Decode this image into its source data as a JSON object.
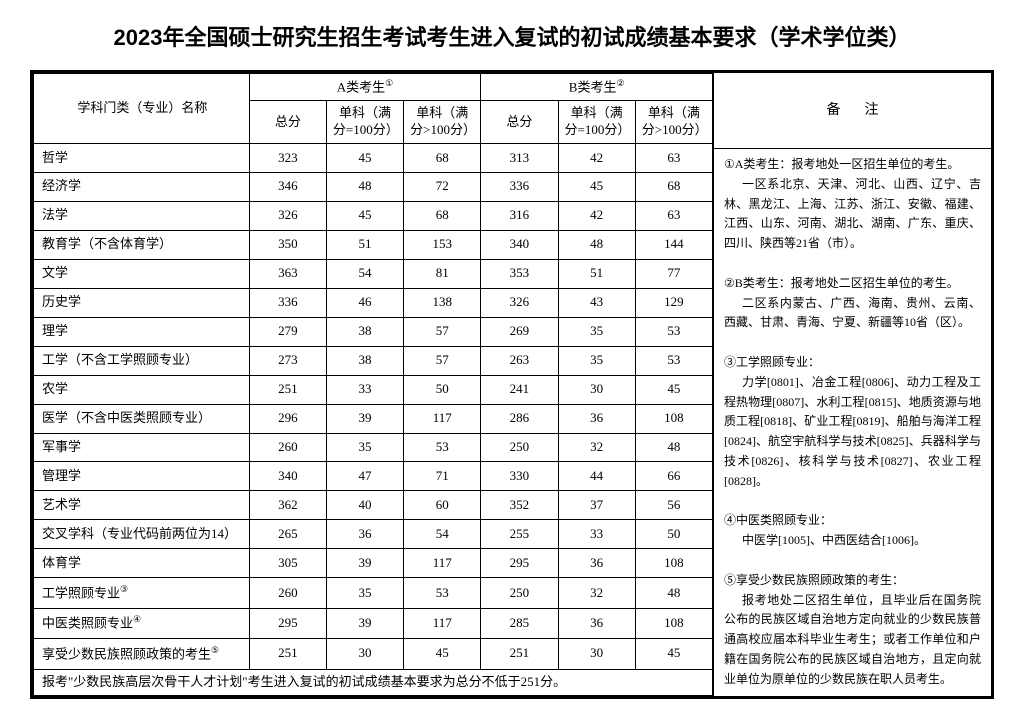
{
  "title": "2023年全国硕士研究生招生考试考生进入复试的初试成绩基本要求（学术学位类）",
  "headers": {
    "subject": "学科门类（专业）名称",
    "groupA": "A类考生",
    "groupB": "B类考生",
    "supA": "①",
    "supB": "②",
    "total": "总分",
    "single100": "单科（满分=100分）",
    "singleOver100": "单科（满分>100分）",
    "notes": "备注"
  },
  "rows": [
    {
      "name": "哲学",
      "a": [
        323,
        45,
        68
      ],
      "b": [
        313,
        42,
        63
      ]
    },
    {
      "name": "经济学",
      "a": [
        346,
        48,
        72
      ],
      "b": [
        336,
        45,
        68
      ]
    },
    {
      "name": "法学",
      "a": [
        326,
        45,
        68
      ],
      "b": [
        316,
        42,
        63
      ]
    },
    {
      "name": "教育学（不含体育学）",
      "a": [
        350,
        51,
        153
      ],
      "b": [
        340,
        48,
        144
      ]
    },
    {
      "name": "文学",
      "a": [
        363,
        54,
        81
      ],
      "b": [
        353,
        51,
        77
      ]
    },
    {
      "name": "历史学",
      "a": [
        336,
        46,
        138
      ],
      "b": [
        326,
        43,
        129
      ]
    },
    {
      "name": "理学",
      "a": [
        279,
        38,
        57
      ],
      "b": [
        269,
        35,
        53
      ]
    },
    {
      "name": "工学（不含工学照顾专业）",
      "a": [
        273,
        38,
        57
      ],
      "b": [
        263,
        35,
        53
      ]
    },
    {
      "name": "农学",
      "a": [
        251,
        33,
        50
      ],
      "b": [
        241,
        30,
        45
      ]
    },
    {
      "name": "医学（不含中医类照顾专业）",
      "a": [
        296,
        39,
        117
      ],
      "b": [
        286,
        36,
        108
      ]
    },
    {
      "name": "军事学",
      "a": [
        260,
        35,
        53
      ],
      "b": [
        250,
        32,
        48
      ]
    },
    {
      "name": "管理学",
      "a": [
        340,
        47,
        71
      ],
      "b": [
        330,
        44,
        66
      ]
    },
    {
      "name": "艺术学",
      "a": [
        362,
        40,
        60
      ],
      "b": [
        352,
        37,
        56
      ]
    },
    {
      "name": "交叉学科（专业代码前两位为14）",
      "a": [
        265,
        36,
        54
      ],
      "b": [
        255,
        33,
        50
      ]
    },
    {
      "name": "体育学",
      "a": [
        305,
        39,
        117
      ],
      "b": [
        295,
        36,
        108
      ]
    },
    {
      "name": "工学照顾专业",
      "sup": "③",
      "a": [
        260,
        35,
        53
      ],
      "b": [
        250,
        32,
        48
      ]
    },
    {
      "name": "中医类照顾专业",
      "sup": "④",
      "a": [
        295,
        39,
        117
      ],
      "b": [
        285,
        36,
        108
      ]
    },
    {
      "name": "享受少数民族照顾政策的考生",
      "sup": "⑤",
      "a": [
        251,
        30,
        45
      ],
      "b": [
        251,
        30,
        45
      ]
    }
  ],
  "footer": "报考\"少数民族高层次骨干人才计划\"考生进入复试的初试成绩基本要求为总分不低于251分。",
  "notes": {
    "n1lead": "①A类考生：报考地处一区招生单位的考生。",
    "n1body": "一区系北京、天津、河北、山西、辽宁、吉林、黑龙江、上海、江苏、浙江、安徽、福建、江西、山东、河南、湖北、湖南、广东、重庆、四川、陕西等21省（市）。",
    "n2lead": "②B类考生：报考地处二区招生单位的考生。",
    "n2body": "二区系内蒙古、广西、海南、贵州、云南、西藏、甘肃、青海、宁夏、新疆等10省（区）。",
    "n3lead": "③工学照顾专业：",
    "n3body": "力学[0801]、冶金工程[0806]、动力工程及工程热物理[0807]、水利工程[0815]、地质资源与地质工程[0818]、矿业工程[0819]、船舶与海洋工程[0824]、航空宇航科学与技术[0825]、兵器科学与技术[0826]、核科学与技术[0827]、农业工程[0828]。",
    "n4lead": "④中医类照顾专业：",
    "n4body": "中医学[1005]、中西医结合[1006]。",
    "n5lead": "⑤享受少数民族照顾政策的考生：",
    "n5body": "报考地处二区招生单位，且毕业后在国务院公布的民族区域自治地方定向就业的少数民族普通高校应届本科毕业生考生；或者工作单位和户籍在国务院公布的民族区域自治地方，且定向就业单位为原单位的少数民族在职人员考生。"
  }
}
